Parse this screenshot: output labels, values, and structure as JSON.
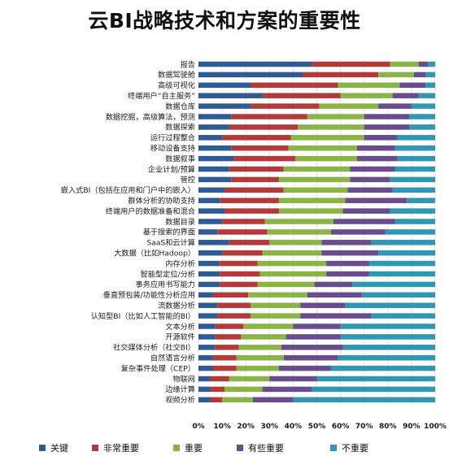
{
  "title": "云BI战略技术和方案的重要性",
  "legend": [
    {
      "label": "关键",
      "color": "#2f5b95"
    },
    {
      "label": "非常重要",
      "color": "#b23b3a"
    },
    {
      "label": "重要",
      "color": "#8bb446"
    },
    {
      "label": "有些重要",
      "color": "#684c8c"
    },
    {
      "label": "不重要",
      "color": "#2f97b1"
    }
  ],
  "chart_data": {
    "type": "bar",
    "orientation": "horizontal",
    "stacked": true,
    "title": "云BI战略技术和方案的重要性",
    "x_ticks": [
      "0%",
      "10%",
      "20%",
      "30%",
      "40%",
      "50%",
      "60%",
      "70%",
      "80%",
      "90%",
      "100%"
    ],
    "xlim": [
      0,
      100
    ],
    "legend_position": "bottom",
    "categories": [
      "报告",
      "数据驾驶舱",
      "高级可视化",
      "终端用户“自主服务”",
      "数据仓库",
      "数据挖掘，高级算法，预测",
      "数据探索",
      "运行过程整合",
      "移动设备支持",
      "数据叙事",
      "企业计划/预算",
      "管控",
      "嵌入式BI（包括在应用和门户中的嵌入）",
      "群体分析的协助支持",
      "终端用户的数据准备和混合",
      "数据目录",
      "基于搜索的界面",
      "SaaS和云计算",
      "大数据（比如Hadoop）",
      "内存分析",
      "智能型定位/分析",
      "事务应用书写能力",
      "垂直预包装/功能性分析应用",
      "流数据分析",
      "认知型BI（比如人工智能的BI）",
      "文本分析",
      "开源软件",
      "社交媒体分析（社交BI）",
      "自然语言分析",
      "复杂事件处理（CEP）",
      "物联网",
      "边缘计算",
      "视频分析"
    ],
    "series": [
      {
        "name": "关键",
        "values": [
          48,
          44,
          22,
          27,
          22,
          14,
          13,
          10,
          14,
          15,
          13,
          14,
          11,
          9,
          11,
          10,
          8,
          13,
          10,
          9,
          9,
          9,
          6,
          8,
          8,
          7,
          7,
          7,
          6,
          6,
          5,
          5,
          5
        ]
      },
      {
        "name": "非常重要",
        "values": [
          33,
          32,
          37,
          33,
          29,
          32,
          29,
          29,
          24,
          26,
          23,
          20,
          25,
          25,
          23,
          18,
          21,
          17,
          17,
          16,
          17,
          16,
          15,
          14,
          14,
          12,
          11,
          10,
          10,
          10,
          8,
          6,
          5
        ]
      },
      {
        "name": "重要",
        "values": [
          12,
          15,
          26,
          22,
          25,
          24,
          28,
          31,
          29,
          26,
          28,
          30,
          27,
          28,
          27,
          29,
          27,
          22,
          25,
          29,
          28,
          24,
          25,
          21,
          21,
          21,
          19,
          18,
          20,
          18,
          17,
          16,
          13
        ]
      },
      {
        "name": "有些重要",
        "values": [
          4,
          5,
          11,
          11,
          14,
          19,
          19,
          14,
          16,
          17,
          19,
          17,
          19,
          26,
          20,
          26,
          23,
          21,
          24,
          18,
          18,
          16,
          23,
          19,
          30,
          20,
          23,
          26,
          23,
          22,
          20,
          21,
          17
        ]
      },
      {
        "name": "不重要",
        "values": [
          3,
          4,
          4,
          7,
          10,
          11,
          11,
          16,
          17,
          16,
          17,
          19,
          18,
          12,
          19,
          17,
          21,
          27,
          24,
          28,
          28,
          35,
          31,
          38,
          27,
          40,
          40,
          39,
          41,
          44,
          50,
          52,
          60
        ]
      }
    ]
  }
}
